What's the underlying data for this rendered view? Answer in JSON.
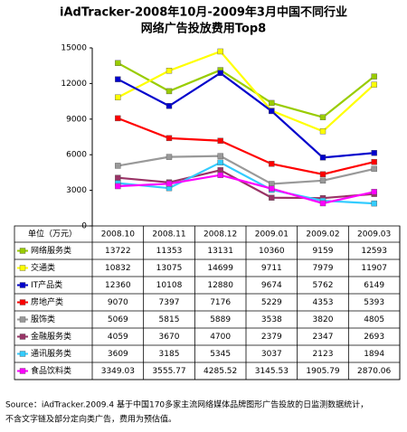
{
  "chart_data": {
    "type": "line",
    "title": "iAdTracker-2008年10月-2009年3月中国不同行业",
    "subtitle": "网络广告投放费用Top8",
    "unit_label": "单位（万元）",
    "categories": [
      "2008.10",
      "2008.11",
      "2008.12",
      "2009.01",
      "2009.02",
      "2009.03"
    ],
    "ylim": [
      0,
      15000
    ],
    "yticks": [
      0,
      3000,
      6000,
      9000,
      12000,
      15000
    ],
    "grid": false,
    "series": [
      {
        "name": "网络服务类",
        "color": "#99cc00",
        "values": [
          13722,
          11353,
          13131,
          10360,
          9159,
          12593
        ]
      },
      {
        "name": "交通类",
        "color": "#ffff00",
        "values": [
          10832,
          13075,
          14699,
          9711,
          7979,
          11907
        ]
      },
      {
        "name": "IT产品类",
        "color": "#0000cc",
        "values": [
          12360,
          10108,
          12880,
          9674,
          5762,
          6149
        ]
      },
      {
        "name": "房地产类",
        "color": "#ff0000",
        "values": [
          9070,
          7397,
          7176,
          5229,
          4353,
          5393
        ]
      },
      {
        "name": "服饰类",
        "color": "#999999",
        "values": [
          5069,
          5815,
          5889,
          3538,
          3820,
          4805
        ]
      },
      {
        "name": "金融服务类",
        "color": "#993366",
        "values": [
          4059,
          3670,
          4700,
          2379,
          2347,
          2693
        ]
      },
      {
        "name": "通讯服务类",
        "color": "#33ccff",
        "values": [
          3609,
          3185,
          5345,
          3037,
          2123,
          1894
        ]
      },
      {
        "name": "食品饮料类",
        "color": "#ff00ff",
        "values": [
          3349.03,
          3555.77,
          4285.52,
          3145.53,
          1905.79,
          2870.06
        ]
      }
    ],
    "note": [
      "Source：iAdTracker.2009.4 基于中国170多家主流网络媒体品牌图形广告投放的日监测数据统计，",
      "不含文字链及部分定向类广告，费用为预估值。"
    ]
  }
}
